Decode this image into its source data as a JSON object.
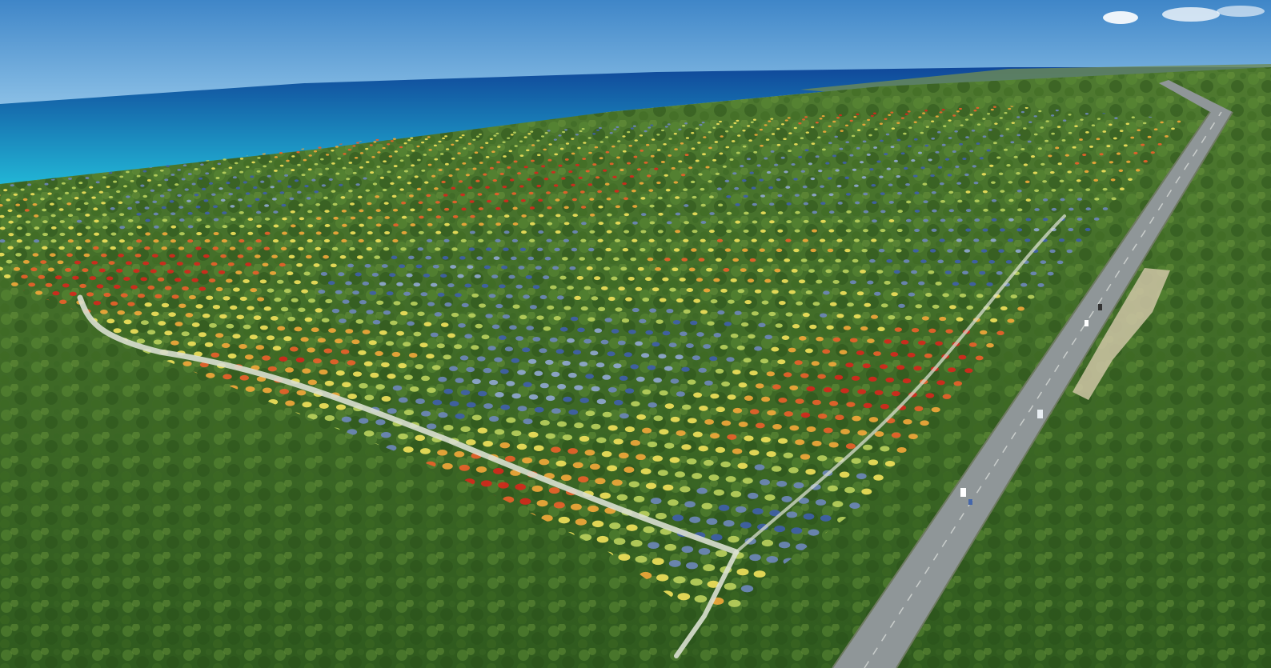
{
  "scene": {
    "palette": {
      "sky_top": "#3f86c8",
      "sky_bottom": "#8fc3e8",
      "sea_deep": "#10489a",
      "sea_shallow": "#22b7d6",
      "forest_dark": "#2f5a1e",
      "forest_light": "#5b8a34",
      "road": "#9aa0a2",
      "road_edge": "#6f7a62",
      "path": "#d9dfd0",
      "dots": [
        "#d4281c",
        "#e8612a",
        "#f0a73a",
        "#efe05a",
        "#b9cf5c",
        "#6d87b8",
        "#3f5fa8",
        "#8fa7cf"
      ]
    },
    "elements": [
      "sky",
      "clouds",
      "sea",
      "distant-coastline",
      "forest",
      "colored-dot-field",
      "dirt-paths",
      "highway",
      "vehicles",
      "roadside-clearing"
    ]
  }
}
